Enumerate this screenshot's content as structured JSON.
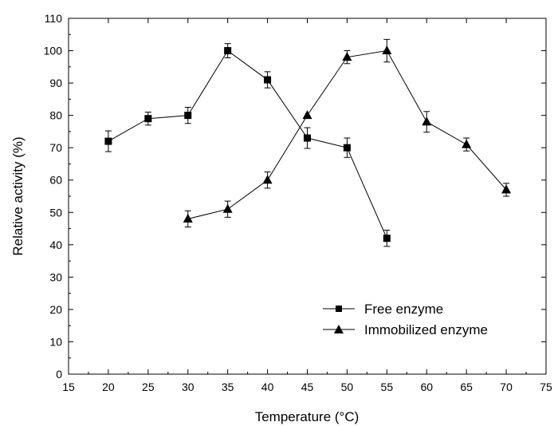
{
  "chart_data": {
    "type": "line",
    "xlabel": "Temperature (°C)",
    "ylabel": "Relative activity (%)",
    "xlim": [
      15,
      75
    ],
    "ylim": [
      0,
      110
    ],
    "xticks": [
      15,
      20,
      25,
      30,
      35,
      40,
      45,
      50,
      55,
      60,
      65,
      70,
      75
    ],
    "yticks": [
      0,
      10,
      20,
      30,
      40,
      50,
      60,
      70,
      80,
      90,
      100,
      110
    ],
    "grid": false,
    "legend_position": "bottom-right",
    "series": [
      {
        "name": "Free enzyme",
        "marker": "square",
        "x": [
          20,
          25,
          30,
          35,
          40,
          45,
          50,
          55
        ],
        "y": [
          72,
          79,
          80,
          100,
          91,
          73,
          70,
          42
        ],
        "error": [
          3.2,
          2.0,
          2.5,
          2.2,
          2.5,
          3.2,
          3.0,
          2.5
        ]
      },
      {
        "name": "Immobilized enzyme",
        "marker": "triangle",
        "x": [
          30,
          35,
          40,
          45,
          50,
          55,
          60,
          65,
          70
        ],
        "y": [
          48,
          51,
          60,
          80,
          98,
          100,
          78,
          71,
          57
        ],
        "error": [
          2.5,
          2.5,
          2.5,
          0,
          2.0,
          3.5,
          3.2,
          2.0,
          2.0
        ]
      }
    ]
  }
}
